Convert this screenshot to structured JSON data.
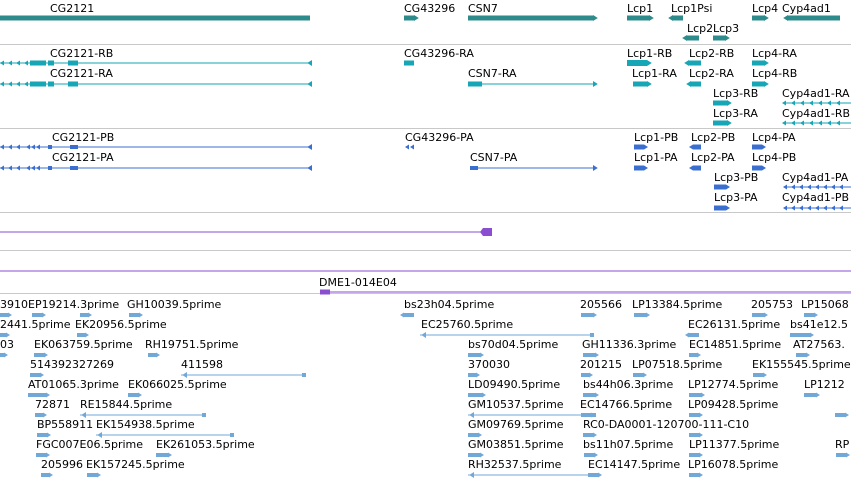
{
  "colors": {
    "gene": "#2e8b8b",
    "rna_transcript": "#16a6b6",
    "protein": "#3a6fd0",
    "clone": "#8a4fd0",
    "est": "#72a8d8",
    "separator": "#c8c8c8"
  },
  "tracks": {
    "genes": [
      "CG2121",
      "CG43296",
      "CSN7",
      "Lcp1",
      "Lcp1Psi",
      "Lcp4",
      "Cyp4ad1",
      "Lcp2",
      "Lcp3"
    ],
    "transcripts": [
      "CG2121-RB",
      "CG2121-RA",
      "CG43296-RA",
      "CSN7-RA",
      "Lcp1-RB",
      "Lcp1-RA",
      "Lcp2-RB",
      "Lcp2-RA",
      "Lcp4-RA",
      "Lcp4-RB",
      "Lcp3-RB",
      "Lcp3-RA",
      "Cyp4ad1-RA",
      "Cyp4ad1-RB"
    ],
    "proteins": [
      "CG2121-PB",
      "CG2121-PA",
      "CG43296-PA",
      "CSN7-PA",
      "Lcp1-PB",
      "Lcp1-PA",
      "Lcp2-PB",
      "Lcp2-PA",
      "Lcp4-PA",
      "Lcp4-PB",
      "Lcp3-PB",
      "Lcp3-PA",
      "Cyp4ad1-PA",
      "Cyp4ad1-PB"
    ],
    "clone": "DME1-014E04",
    "ests": [
      "3910",
      "EP19214.3prime",
      "GH10039.5prime",
      "bs23h04.5prime",
      "205566",
      "LP13384.5prime",
      "205753",
      "LP15068",
      "2441.5prime",
      "EK20956.5prime",
      "EC25760.5prime",
      "EC26131.5prime",
      "bs41e12.5",
      "03",
      "EK063759.5prime",
      "RH19751.5prime",
      "bs70d04.5prime",
      "GH11336.3prime",
      "EC14851.5prime",
      "AT27563.",
      "514392327269",
      "411598",
      "370030",
      "201215",
      "LP07518.5prime",
      "EK155545.5prime",
      "AT01065.3prime",
      "EK066025.5prime",
      "LD09490.5prime",
      "bs44h06.3prime",
      "LP12774.5prime",
      "LP1212",
      "72871",
      "RE15844.5prime",
      "GM10537.5prime",
      "EC14766.5prime",
      "LP09428.5prime",
      "BP558911",
      "EK154938.5prime",
      "GM09769.5prime",
      "RC0-DA0001-120700-111-C10",
      "FGC007E06.5prime",
      "EK261053.5prime",
      "GM03851.5prime",
      "bs11h07.5prime",
      "LP11377.5prime",
      "RP",
      "205996",
      "EK157245.5prime",
      "RH32537.5prime",
      "EC14147.5prime",
      "LP16078.5prime"
    ]
  }
}
